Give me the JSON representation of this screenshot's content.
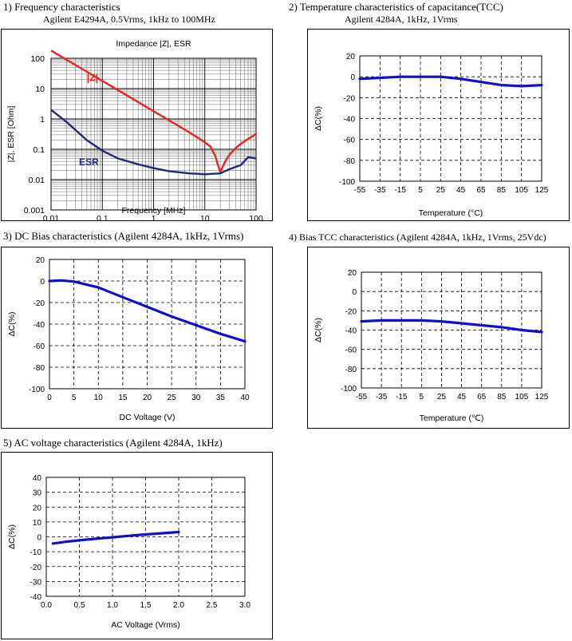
{
  "sections": [
    {
      "title": "1) Frequency characteristics",
      "subtitle": "Agilent E4294A, 0.5Vrms, 1kHz to 100MHz"
    },
    {
      "title": "2) Temperature characteristics of capacitance(TCC)",
      "subtitle": "Agilent 4284A, 1kHz, 1Vrms"
    },
    {
      "title": "3) DC Bias characteristics (Agilent 4284A, 1kHz, 1Vrms)",
      "subtitle": ""
    },
    {
      "title": "4) Bias TCC characteristics (Agilent 4284A, 1kHz, 1Vrms, 25Vdc)",
      "subtitle": ""
    },
    {
      "title": "5) AC voltage characteristics (Agilent 4284A, 1kHz)",
      "subtitle": ""
    }
  ],
  "chart_data": [
    {
      "type": "line",
      "title": "Impedance |Z|,  ESR",
      "xlabel": "Frequency [MHz]",
      "ylabel": "|Z|, ESR [Ohm]",
      "xscale": "log",
      "yscale": "log",
      "xlim": [
        0.01,
        100
      ],
      "ylim": [
        0.001,
        100
      ],
      "xticks": [
        "0.01",
        "0.1",
        "1",
        "10",
        "100"
      ],
      "yticks": [
        "0.001",
        "0.01",
        "0.1",
        "1",
        "10",
        "100"
      ],
      "grid": true,
      "series": [
        {
          "name": "|Z|",
          "color": "#ee2222",
          "x": [
            0.01,
            0.02,
            0.05,
            0.1,
            0.2,
            0.5,
            1,
            2,
            5,
            10,
            13,
            16,
            18,
            20,
            22,
            25,
            30,
            40,
            50,
            70,
            100
          ],
          "y": [
            180,
            90,
            36,
            18,
            9,
            3.6,
            1.8,
            0.9,
            0.36,
            0.17,
            0.12,
            0.06,
            0.03,
            0.018,
            0.025,
            0.04,
            0.065,
            0.11,
            0.15,
            0.22,
            0.32
          ]
        },
        {
          "name": "ESR",
          "color": "#1f2a7a",
          "x": [
            0.01,
            0.02,
            0.05,
            0.1,
            0.2,
            0.5,
            1,
            2,
            5,
            10,
            20,
            30,
            50,
            70,
            100
          ],
          "y": [
            2.0,
            0.8,
            0.2,
            0.09,
            0.05,
            0.032,
            0.024,
            0.019,
            0.016,
            0.015,
            0.016,
            0.022,
            0.03,
            0.055,
            0.05
          ]
        }
      ],
      "label_colors": {
        "Z": "#ee2222",
        "ESR": "#1f2a7a"
      }
    },
    {
      "type": "line",
      "xlabel": "Temperature (°C)",
      "ylabel": "ΔC(%)",
      "xlim": [
        -55,
        125
      ],
      "ylim": [
        -100,
        20
      ],
      "xticks": [
        "-55",
        "-35",
        "-15",
        "5",
        "25",
        "45",
        "65",
        "85",
        "105",
        "125"
      ],
      "yticks": [
        "20",
        "0",
        "-20",
        "-40",
        "-60",
        "-80",
        "-100"
      ],
      "grid": true,
      "series": [
        {
          "color": "#1010cc",
          "x": [
            -55,
            -35,
            -15,
            5,
            25,
            45,
            65,
            85,
            105,
            125
          ],
          "y": [
            -2,
            -1,
            0,
            0,
            0,
            -2,
            -5,
            -8,
            -9,
            -8
          ]
        }
      ]
    },
    {
      "type": "line",
      "xlabel": "DC Voltage (V)",
      "ylabel": "ΔC(%)",
      "xlim": [
        0,
        40
      ],
      "ylim": [
        -100,
        20
      ],
      "xticks": [
        "0",
        "5",
        "10",
        "15",
        "20",
        "25",
        "30",
        "35",
        "40"
      ],
      "yticks": [
        "20",
        "0",
        "-20",
        "-40",
        "-60",
        "-80",
        "-100"
      ],
      "grid": true,
      "series": [
        {
          "color": "#1010cc",
          "x": [
            0,
            2.5,
            5,
            10,
            15,
            20,
            25,
            30,
            35,
            40
          ],
          "y": [
            0,
            0.5,
            -0.5,
            -6,
            -15,
            -24,
            -33,
            -41,
            -49,
            -56
          ]
        }
      ]
    },
    {
      "type": "line",
      "xlabel": "Temperature (℃)",
      "ylabel": "ΔC(%)",
      "xlim": [
        -55,
        125
      ],
      "ylim": [
        -100,
        20
      ],
      "xticks": [
        "-55",
        "-35",
        "-15",
        "5",
        "25",
        "45",
        "65",
        "85",
        "105",
        "125"
      ],
      "yticks": [
        "20",
        "0",
        "-20",
        "-40",
        "-60",
        "-80",
        "-100"
      ],
      "grid": true,
      "series": [
        {
          "color": "#1010cc",
          "x": [
            -55,
            -35,
            -15,
            5,
            25,
            45,
            65,
            85,
            105,
            125
          ],
          "y": [
            -31,
            -30,
            -30,
            -30,
            -31,
            -33,
            -35,
            -37,
            -40,
            -42
          ]
        }
      ]
    },
    {
      "type": "line",
      "xlabel": "AC Voltage (Vrms)",
      "ylabel": "ΔC(%)",
      "xlim": [
        0,
        3
      ],
      "ylim": [
        -40,
        40
      ],
      "xticks": [
        "0.0",
        "0.5",
        "1.0",
        "1.5",
        "2.0",
        "2.5",
        "3.0"
      ],
      "yticks": [
        "40",
        "30",
        "20",
        "10",
        "0",
        "-10",
        "-20",
        "-30",
        "-40"
      ],
      "grid": true,
      "series": [
        {
          "color": "#1010cc",
          "x": [
            0.1,
            0.3,
            0.5,
            0.75,
            1.0,
            1.25,
            1.5,
            1.75,
            2.0
          ],
          "y": [
            -4.5,
            -3.3,
            -2.3,
            -1.3,
            -0.3,
            0.7,
            1.6,
            2.4,
            3.2
          ]
        }
      ]
    }
  ]
}
